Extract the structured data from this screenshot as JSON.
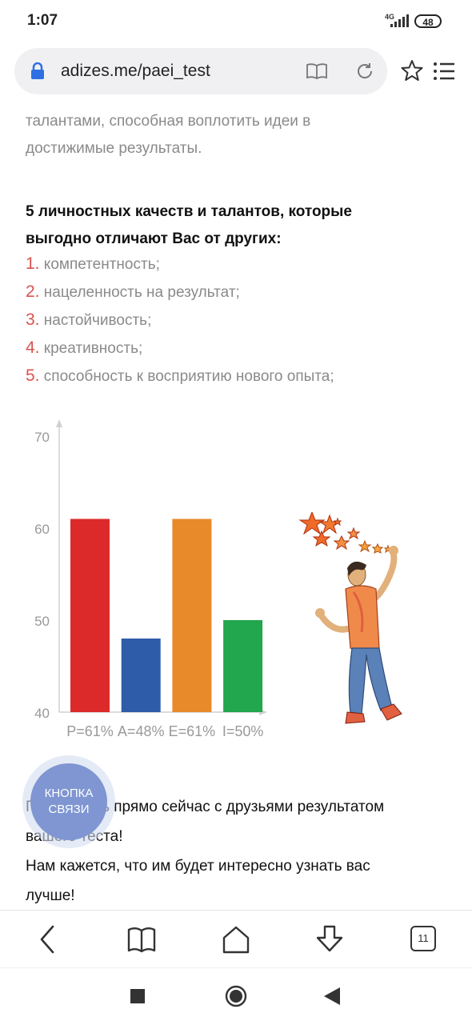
{
  "status": {
    "time": "1:07",
    "network": "4G",
    "battery": "48"
  },
  "browser": {
    "url": "adizes.me/paei_test"
  },
  "article": {
    "intro_line1": "талантами, способная воплотить идеи в",
    "intro_line2": "достижимые результаты.",
    "heading_line1": "5 личностных качеств и талантов, которые",
    "heading_line2": "выгодно отличают Вас от других:",
    "qualities": [
      {
        "num": "1.",
        "text": "компетентность;"
      },
      {
        "num": "2.",
        "text": "нацеленность на результат;"
      },
      {
        "num": "3.",
        "text": "настойчивость;"
      },
      {
        "num": "4.",
        "text": "креативность;"
      },
      {
        "num": "5.",
        "text": "способность к восприятию нового опыта;"
      }
    ],
    "share_line1": "Поделитесь прямо сейчас с друзьями результатом",
    "share_line2": "вашего теста!",
    "share_line3": "Нам кажется, что им будет интересно узнать вас",
    "share_line4": "лучше!"
  },
  "fab": {
    "line1": "КНОПКА",
    "line2": "СВЯЗИ"
  },
  "nav": {
    "tabs_count": "11"
  },
  "chart_data": {
    "type": "bar",
    "categories": [
      "P=61%",
      "A=48%",
      "E=61%",
      "I=50%"
    ],
    "values": [
      61,
      48,
      61,
      50
    ],
    "colors": [
      "#dc2a2a",
      "#2e5ca8",
      "#e8892a",
      "#22a64e"
    ],
    "yticks": [
      "70",
      "60",
      "50",
      "40"
    ],
    "ylim": [
      40,
      70
    ],
    "title": "",
    "xlabel": "",
    "ylabel": ""
  }
}
